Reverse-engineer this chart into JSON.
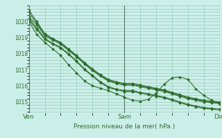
{
  "bg_color": "#cceee8",
  "grid_color": "#99ccbb",
  "line_color": "#2d6e2d",
  "title": "Pression niveau de la mer( hPa )",
  "x_labels": [
    "Ven",
    "Sam",
    "Dim"
  ],
  "ylim": [
    1014.3,
    1021.0
  ],
  "yticks": [
    1015,
    1016,
    1017,
    1018,
    1019,
    1020
  ],
  "series": [
    [
      1020.3,
      1019.8,
      1019.1,
      1018.85,
      1018.6,
      1018.2,
      1017.8,
      1017.35,
      1016.95,
      1016.6,
      1016.3,
      1016.15,
      1016.05,
      1016.05,
      1015.95,
      1015.85,
      1015.75,
      1015.65,
      1015.5,
      1015.35,
      1015.2,
      1015.1,
      1015.0,
      1014.95,
      1014.9
    ],
    [
      1020.55,
      1019.9,
      1019.2,
      1018.9,
      1018.65,
      1018.25,
      1017.85,
      1017.4,
      1017.0,
      1016.65,
      1016.35,
      1016.2,
      1016.1,
      1016.1,
      1016.0,
      1015.9,
      1015.8,
      1015.7,
      1015.55,
      1015.4,
      1015.25,
      1015.15,
      1015.05,
      1015.0,
      1014.95
    ],
    [
      1020.7,
      1020.0,
      1019.25,
      1018.95,
      1018.7,
      1018.3,
      1017.9,
      1017.45,
      1017.05,
      1016.7,
      1016.4,
      1016.25,
      1016.15,
      1016.15,
      1016.05,
      1015.95,
      1015.85,
      1015.75,
      1015.6,
      1015.45,
      1015.3,
      1015.2,
      1015.1,
      1015.05,
      1015.0
    ],
    [
      1020.1,
      1019.5,
      1018.9,
      1018.6,
      1018.35,
      1017.95,
      1017.5,
      1017.0,
      1016.6,
      1016.2,
      1015.9,
      1015.75,
      1015.65,
      1015.65,
      1015.55,
      1015.45,
      1015.35,
      1015.25,
      1015.1,
      1014.95,
      1014.8,
      1014.7,
      1014.6,
      1014.55,
      1014.5
    ],
    [
      1020.2,
      1019.6,
      1018.95,
      1018.65,
      1018.4,
      1018.0,
      1017.55,
      1017.05,
      1016.65,
      1016.25,
      1015.95,
      1015.8,
      1015.7,
      1015.7,
      1015.6,
      1015.5,
      1015.4,
      1015.3,
      1015.15,
      1015.0,
      1014.85,
      1014.75,
      1014.65,
      1014.6,
      1014.55
    ]
  ],
  "special_series": [
    1020.0,
    1019.2,
    1018.7,
    1018.3,
    1017.9,
    1017.3,
    1016.8,
    1016.3,
    1016.0,
    1015.85,
    1015.7,
    1015.5,
    1015.3,
    1015.1,
    1015.05,
    1015.15,
    1015.55,
    1016.1,
    1016.5,
    1016.55,
    1016.4,
    1015.8,
    1015.4,
    1015.1,
    1014.85
  ],
  "vline_color": "#557766",
  "vline_positions": [
    0.0,
    0.5,
    1.0
  ],
  "figsize": [
    3.2,
    2.0
  ],
  "dpi": 100
}
